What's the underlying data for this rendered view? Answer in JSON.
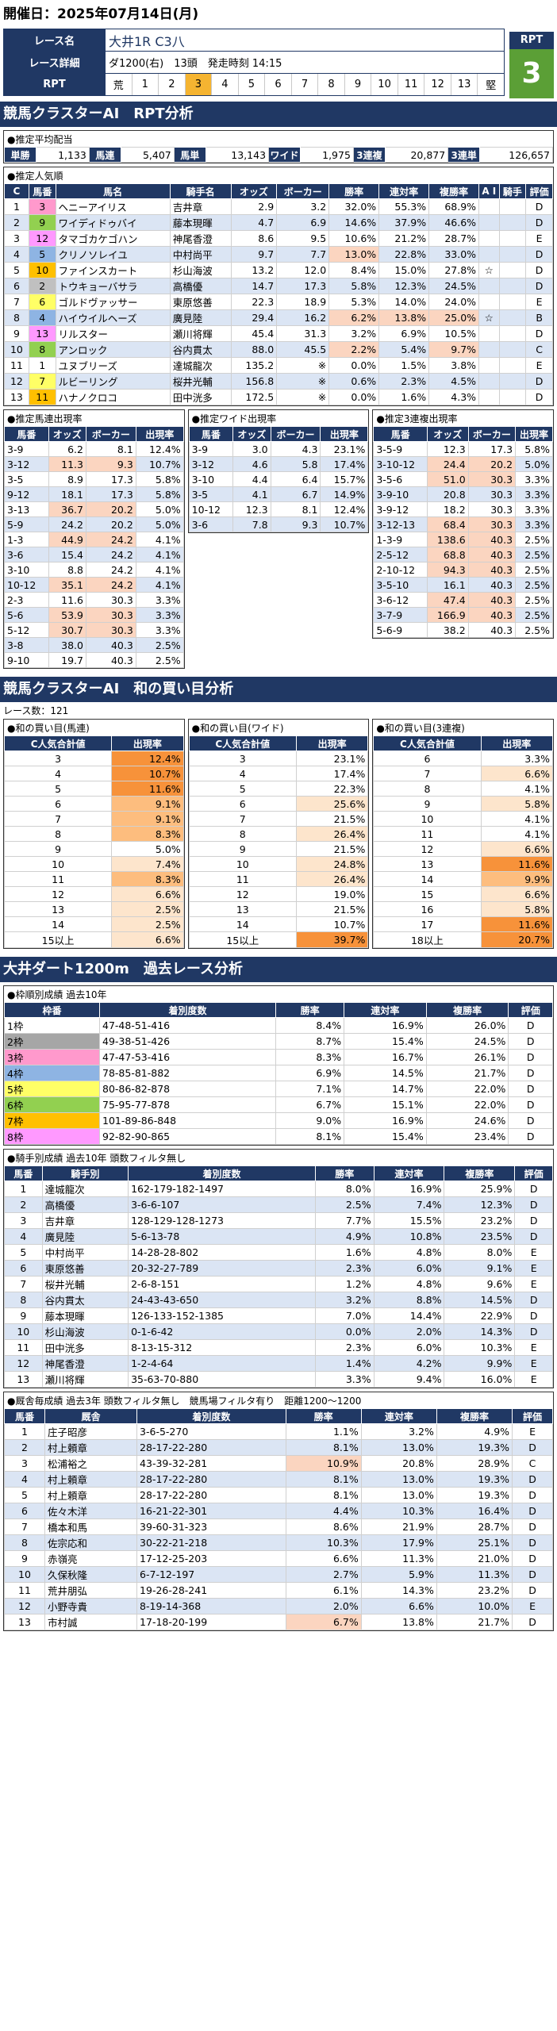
{
  "header": {
    "date_label": "開催日：2025年07月14日(月)"
  },
  "race": {
    "name_label": "レース名",
    "name": "大井1R C3八",
    "detail_label": "レース詳細",
    "detail": "ダ1200(右)　13頭　発走時刻 14:15",
    "rpt_label": "RPT",
    "scale": [
      "荒",
      "1",
      "2",
      "3",
      "4",
      "5",
      "6",
      "7",
      "8",
      "9",
      "10",
      "11",
      "12",
      "13",
      "堅"
    ],
    "scale_selected": 3,
    "rpt_head": "RPT",
    "rpt_value": "3"
  },
  "rpt_section": {
    "title": "競馬クラスターAI　RPT分析"
  },
  "payout": {
    "title": "●推定平均配当",
    "items": [
      [
        "単勝",
        "1,133"
      ],
      [
        "馬連",
        "5,407"
      ],
      [
        "馬単",
        "13,143"
      ],
      [
        "ワイド",
        "1,975"
      ],
      [
        "3連複",
        "20,877"
      ],
      [
        "3連単",
        "126,657"
      ]
    ]
  },
  "popularity": {
    "title": "●推定人気順",
    "headers": [
      "C",
      "馬番",
      "馬名",
      "騎手名",
      "オッズ",
      "ボーカー",
      "勝率",
      "連対率",
      "複勝率",
      "A I",
      "騎手",
      "評価"
    ],
    "rows": [
      [
        "1",
        "3",
        "ヘニーアイリス",
        "吉井章",
        "2.9",
        "3.2",
        "32.0%",
        "55.3%",
        "68.9%",
        "",
        "",
        "D"
      ],
      [
        "2",
        "9",
        "ワイディドゥバイ",
        "藤本現暉",
        "4.7",
        "6.9",
        "14.6%",
        "37.9%",
        "46.6%",
        "",
        "",
        "D"
      ],
      [
        "3",
        "12",
        "タマゴカケゴハン",
        "神尾香澄",
        "8.6",
        "9.5",
        "10.6%",
        "21.2%",
        "28.7%",
        "",
        "",
        "E"
      ],
      [
        "4",
        "5",
        "クリノソレイユ",
        "中村尚平",
        "9.7",
        "7.7",
        "13.0%",
        "22.8%",
        "33.0%",
        "",
        "",
        "D"
      ],
      [
        "5",
        "10",
        "ファインスカート",
        "杉山海波",
        "13.2",
        "12.0",
        "8.4%",
        "15.0%",
        "27.8%",
        "☆",
        "",
        "D"
      ],
      [
        "6",
        "2",
        "トウキョーバサラ",
        "高橋優",
        "14.7",
        "17.3",
        "5.8%",
        "12.3%",
        "24.5%",
        "",
        "",
        "D"
      ],
      [
        "7",
        "6",
        "ゴルドヴァッサー",
        "東原悠善",
        "22.3",
        "18.9",
        "5.3%",
        "14.0%",
        "24.0%",
        "",
        "",
        "E"
      ],
      [
        "8",
        "4",
        "ハイウイルヘーズ",
        "廣見陸",
        "29.4",
        "16.2",
        "6.2%",
        "13.8%",
        "25.0%",
        "☆",
        "",
        "B"
      ],
      [
        "9",
        "13",
        "リルスター",
        "瀬川将輝",
        "45.4",
        "31.3",
        "3.2%",
        "6.9%",
        "10.5%",
        "",
        "",
        "D"
      ],
      [
        "10",
        "8",
        "アンロック",
        "谷内貫太",
        "88.0",
        "45.5",
        "2.2%",
        "5.4%",
        "9.7%",
        "",
        "",
        "C"
      ],
      [
        "11",
        "1",
        "ユヌブリーズ",
        "達城龍次",
        "135.2",
        "※",
        "0.0%",
        "1.5%",
        "3.8%",
        "",
        "",
        "E"
      ],
      [
        "12",
        "7",
        "ルビーリング",
        "桜井光輔",
        "156.8",
        "※",
        "0.6%",
        "2.3%",
        "4.5%",
        "",
        "",
        "D"
      ],
      [
        "13",
        "11",
        "ハナノクロコ",
        "田中洸多",
        "172.5",
        "※",
        "0.0%",
        "1.6%",
        "4.3%",
        "",
        "",
        "D"
      ]
    ]
  },
  "umaren": {
    "title": "●推定馬連出現率",
    "headers": [
      "馬番",
      "オッズ",
      "ボーカー",
      "出現率"
    ],
    "rows": [
      [
        "3-9",
        "6.2",
        "8.1",
        "12.4%"
      ],
      [
        "3-12",
        "11.3",
        "9.3",
        "10.7%"
      ],
      [
        "3-5",
        "8.9",
        "17.3",
        "5.8%"
      ],
      [
        "9-12",
        "18.1",
        "17.3",
        "5.8%"
      ],
      [
        "3-13",
        "36.7",
        "20.2",
        "5.0%"
      ],
      [
        "5-9",
        "24.2",
        "20.2",
        "5.0%"
      ],
      [
        "1-3",
        "44.9",
        "24.2",
        "4.1%"
      ],
      [
        "3-6",
        "15.4",
        "24.2",
        "4.1%"
      ],
      [
        "3-10",
        "8.8",
        "24.2",
        "4.1%"
      ],
      [
        "10-12",
        "35.1",
        "24.2",
        "4.1%"
      ],
      [
        "2-3",
        "11.6",
        "30.3",
        "3.3%"
      ],
      [
        "5-6",
        "53.9",
        "30.3",
        "3.3%"
      ],
      [
        "5-12",
        "30.7",
        "30.3",
        "3.3%"
      ],
      [
        "3-8",
        "38.0",
        "40.3",
        "2.5%"
      ],
      [
        "9-10",
        "19.7",
        "40.3",
        "2.5%"
      ]
    ]
  },
  "wide": {
    "title": "●推定ワイド出現率",
    "headers": [
      "馬番",
      "オッズ",
      "ボーカー",
      "出現率"
    ],
    "rows": [
      [
        "3-9",
        "3.0",
        "4.3",
        "23.1%"
      ],
      [
        "3-12",
        "4.6",
        "5.8",
        "17.4%"
      ],
      [
        "3-10",
        "4.4",
        "6.4",
        "15.7%"
      ],
      [
        "3-5",
        "4.1",
        "6.7",
        "14.9%"
      ],
      [
        "10-12",
        "12.3",
        "8.1",
        "12.4%"
      ],
      [
        "3-6",
        "7.8",
        "9.3",
        "10.7%"
      ]
    ]
  },
  "sanrenpuku": {
    "title": "●推定3連複出現率",
    "headers": [
      "馬番",
      "オッズ",
      "ボーカー",
      "出現率"
    ],
    "rows": [
      [
        "3-5-9",
        "12.3",
        "17.3",
        "5.8%"
      ],
      [
        "3-10-12",
        "24.4",
        "20.2",
        "5.0%"
      ],
      [
        "3-5-6",
        "51.0",
        "30.3",
        "3.3%"
      ],
      [
        "3-9-10",
        "20.8",
        "30.3",
        "3.3%"
      ],
      [
        "3-9-12",
        "18.2",
        "30.3",
        "3.3%"
      ],
      [
        "3-12-13",
        "68.4",
        "30.3",
        "3.3%"
      ],
      [
        "1-3-9",
        "138.6",
        "40.3",
        "2.5%"
      ],
      [
        "2-5-12",
        "68.8",
        "40.3",
        "2.5%"
      ],
      [
        "2-10-12",
        "94.3",
        "40.3",
        "2.5%"
      ],
      [
        "3-5-10",
        "16.1",
        "40.3",
        "2.5%"
      ],
      [
        "3-6-12",
        "47.4",
        "40.3",
        "2.5%"
      ],
      [
        "3-7-9",
        "166.9",
        "40.3",
        "2.5%"
      ],
      [
        "5-6-9",
        "38.2",
        "40.3",
        "2.5%"
      ]
    ]
  },
  "wa_section": {
    "title": "競馬クラスターAI　和の買い目分析",
    "race_count": "レース数：121"
  },
  "wa_umaren": {
    "title": "●和の買い目(馬連)",
    "headers": [
      "C人気合計値",
      "出現率"
    ],
    "rows": [
      [
        "3",
        "12.4%"
      ],
      [
        "4",
        "10.7%"
      ],
      [
        "5",
        "11.6%"
      ],
      [
        "6",
        "9.1%"
      ],
      [
        "7",
        "9.1%"
      ],
      [
        "8",
        "8.3%"
      ],
      [
        "9",
        "5.0%"
      ],
      [
        "10",
        "7.4%"
      ],
      [
        "11",
        "8.3%"
      ],
      [
        "12",
        "6.6%"
      ],
      [
        "13",
        "2.5%"
      ],
      [
        "14",
        "2.5%"
      ],
      [
        "15以上",
        "6.6%"
      ]
    ]
  },
  "wa_wide": {
    "title": "●和の買い目(ワイド)",
    "headers": [
      "C人気合計値",
      "出現率"
    ],
    "rows": [
      [
        "3",
        "23.1%"
      ],
      [
        "4",
        "17.4%"
      ],
      [
        "5",
        "22.3%"
      ],
      [
        "6",
        "25.6%"
      ],
      [
        "7",
        "21.5%"
      ],
      [
        "8",
        "26.4%"
      ],
      [
        "9",
        "21.5%"
      ],
      [
        "10",
        "24.8%"
      ],
      [
        "11",
        "26.4%"
      ],
      [
        "12",
        "19.0%"
      ],
      [
        "13",
        "21.5%"
      ],
      [
        "14",
        "10.7%"
      ],
      [
        "15以上",
        "39.7%"
      ]
    ]
  },
  "wa_san": {
    "title": "●和の買い目(3連複)",
    "headers": [
      "C人気合計値",
      "出現率"
    ],
    "rows": [
      [
        "6",
        "3.3%"
      ],
      [
        "7",
        "6.6%"
      ],
      [
        "8",
        "4.1%"
      ],
      [
        "9",
        "5.8%"
      ],
      [
        "10",
        "4.1%"
      ],
      [
        "11",
        "4.1%"
      ],
      [
        "12",
        "6.6%"
      ],
      [
        "13",
        "11.6%"
      ],
      [
        "14",
        "9.9%"
      ],
      [
        "15",
        "6.6%"
      ],
      [
        "16",
        "5.8%"
      ],
      [
        "17",
        "11.6%"
      ],
      [
        "18以上",
        "20.7%"
      ]
    ]
  },
  "past_section": {
    "title": "大井ダート1200m　過去レース分析"
  },
  "waku": {
    "title": "●枠順別成績 過去10年",
    "headers": [
      "枠番",
      "着別度数",
      "勝率",
      "連対率",
      "複勝率",
      "評価"
    ],
    "rows": [
      [
        "1枠",
        "47-48-51-416",
        "8.4%",
        "16.9%",
        "26.0%",
        "D"
      ],
      [
        "2枠",
        "49-38-51-426",
        "8.7%",
        "15.4%",
        "24.5%",
        "D"
      ],
      [
        "3枠",
        "47-47-53-416",
        "8.3%",
        "16.7%",
        "26.1%",
        "D"
      ],
      [
        "4枠",
        "78-85-81-882",
        "6.9%",
        "14.5%",
        "21.7%",
        "D"
      ],
      [
        "5枠",
        "80-86-82-878",
        "7.1%",
        "14.7%",
        "22.0%",
        "D"
      ],
      [
        "6枠",
        "75-95-77-878",
        "6.7%",
        "15.1%",
        "22.0%",
        "D"
      ],
      [
        "7枠",
        "101-89-86-848",
        "9.0%",
        "16.9%",
        "24.6%",
        "D"
      ],
      [
        "8枠",
        "92-82-90-865",
        "8.1%",
        "15.4%",
        "23.4%",
        "D"
      ]
    ],
    "colors": [
      "#ffffff",
      "#a6a6a6",
      "#ff99cc",
      "#8eb4e3",
      "#ffff66",
      "#92d050",
      "#ffc000",
      "#ff99ff"
    ]
  },
  "jockey": {
    "title": "●騎手別成績 過去10年 頭数フィルタ無し",
    "headers": [
      "馬番",
      "騎手別",
      "着別度数",
      "勝率",
      "連対率",
      "複勝率",
      "評価"
    ],
    "rows": [
      [
        "1",
        "達城龍次",
        "162-179-182-1497",
        "8.0%",
        "16.9%",
        "25.9%",
        "D"
      ],
      [
        "2",
        "高橋優",
        "3-6-6-107",
        "2.5%",
        "7.4%",
        "12.3%",
        "D"
      ],
      [
        "3",
        "吉井章",
        "128-129-128-1273",
        "7.7%",
        "15.5%",
        "23.2%",
        "D"
      ],
      [
        "4",
        "廣見陸",
        "5-6-13-78",
        "4.9%",
        "10.8%",
        "23.5%",
        "D"
      ],
      [
        "5",
        "中村尚平",
        "14-28-28-802",
        "1.6%",
        "4.8%",
        "8.0%",
        "E"
      ],
      [
        "6",
        "東原悠善",
        "20-32-27-789",
        "2.3%",
        "6.0%",
        "9.1%",
        "E"
      ],
      [
        "7",
        "桜井光輔",
        "2-6-8-151",
        "1.2%",
        "4.8%",
        "9.6%",
        "E"
      ],
      [
        "8",
        "谷内貫太",
        "24-43-43-650",
        "3.2%",
        "8.8%",
        "14.5%",
        "D"
      ],
      [
        "9",
        "藤本現暉",
        "126-133-152-1385",
        "7.0%",
        "14.4%",
        "22.9%",
        "D"
      ],
      [
        "10",
        "杉山海波",
        "0-1-6-42",
        "0.0%",
        "2.0%",
        "14.3%",
        "D"
      ],
      [
        "11",
        "田中洸多",
        "8-13-15-312",
        "2.3%",
        "6.0%",
        "10.3%",
        "E"
      ],
      [
        "12",
        "神尾香澄",
        "1-2-4-64",
        "1.4%",
        "4.2%",
        "9.9%",
        "E"
      ],
      [
        "13",
        "瀬川将輝",
        "35-63-70-880",
        "3.3%",
        "9.4%",
        "16.0%",
        "E"
      ]
    ]
  },
  "trainer": {
    "title": "●厩舎毎成績 過去3年 頭数フィルタ無し　競馬場フィルタ有り　距離1200～1200",
    "headers": [
      "馬番",
      "厩舎",
      "着別度数",
      "勝率",
      "連対率",
      "複勝率",
      "評価"
    ],
    "rows": [
      [
        "1",
        "庄子昭彦",
        "3-6-5-270",
        "1.1%",
        "3.2%",
        "4.9%",
        "E"
      ],
      [
        "2",
        "村上頼章",
        "28-17-22-280",
        "8.1%",
        "13.0%",
        "19.3%",
        "D"
      ],
      [
        "3",
        "松浦裕之",
        "43-39-32-281",
        "10.9%",
        "20.8%",
        "28.9%",
        "C"
      ],
      [
        "4",
        "村上頼章",
        "28-17-22-280",
        "8.1%",
        "13.0%",
        "19.3%",
        "D"
      ],
      [
        "5",
        "村上頼章",
        "28-17-22-280",
        "8.1%",
        "13.0%",
        "19.3%",
        "D"
      ],
      [
        "6",
        "佐々木洋",
        "16-21-22-301",
        "4.4%",
        "10.3%",
        "16.4%",
        "D"
      ],
      [
        "7",
        "橋本和馬",
        "39-60-31-323",
        "8.6%",
        "21.9%",
        "28.7%",
        "D"
      ],
      [
        "8",
        "佐宗応和",
        "30-22-21-218",
        "10.3%",
        "17.9%",
        "25.1%",
        "D"
      ],
      [
        "9",
        "赤嶺亮",
        "17-12-25-203",
        "6.6%",
        "11.3%",
        "21.0%",
        "D"
      ],
      [
        "10",
        "久保秋隆",
        "6-7-12-197",
        "2.7%",
        "5.9%",
        "11.3%",
        "D"
      ],
      [
        "11",
        "荒井朋弘",
        "19-26-28-241",
        "6.1%",
        "14.3%",
        "23.2%",
        "D"
      ],
      [
        "12",
        "小野寺貴",
        "8-19-14-368",
        "2.0%",
        "6.6%",
        "10.0%",
        "E"
      ],
      [
        "13",
        "市村誠",
        "17-18-20-199",
        "6.7%",
        "13.8%",
        "21.7%",
        "D"
      ]
    ]
  }
}
